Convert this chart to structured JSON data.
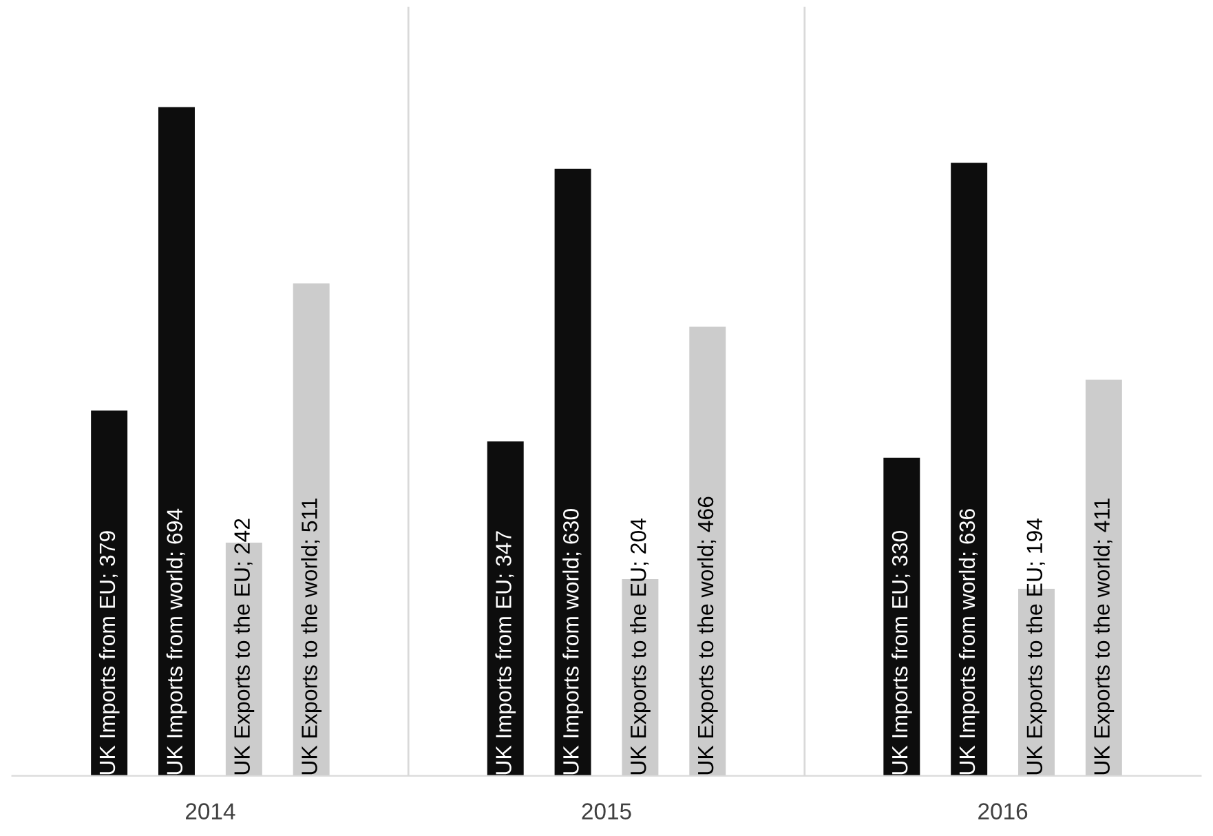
{
  "chart_data": {
    "type": "bar",
    "categories": [
      "2014",
      "2015",
      "2016"
    ],
    "series": [
      {
        "color": "#0d0d0d",
        "values": [
          379,
          347,
          330
        ],
        "value_labels": [
          "UK Imports from EU; 379",
          "UK Imports from EU; 347",
          "UK Imports from EU; 330"
        ]
      },
      {
        "color": "#0d0d0d",
        "values": [
          694,
          630,
          636
        ],
        "value_labels": [
          "UK Imports from world; 694",
          "UK Imports from world; 630",
          "UK Imports from world; 636"
        ]
      },
      {
        "color": "#cccccc",
        "values": [
          242,
          204,
          194
        ],
        "value_labels": [
          "UK Exports to the EU; 242",
          "UK Exports to the EU; 204",
          "UK Exports to the EU; 194"
        ]
      },
      {
        "color": "#cccccc",
        "values": [
          511,
          466,
          411
        ],
        "value_labels": [
          "UK Exports to the world; 511",
          "UK Exports to the world; 466",
          "UK Exports to the world; 411"
        ]
      }
    ],
    "grid": "x"
  }
}
